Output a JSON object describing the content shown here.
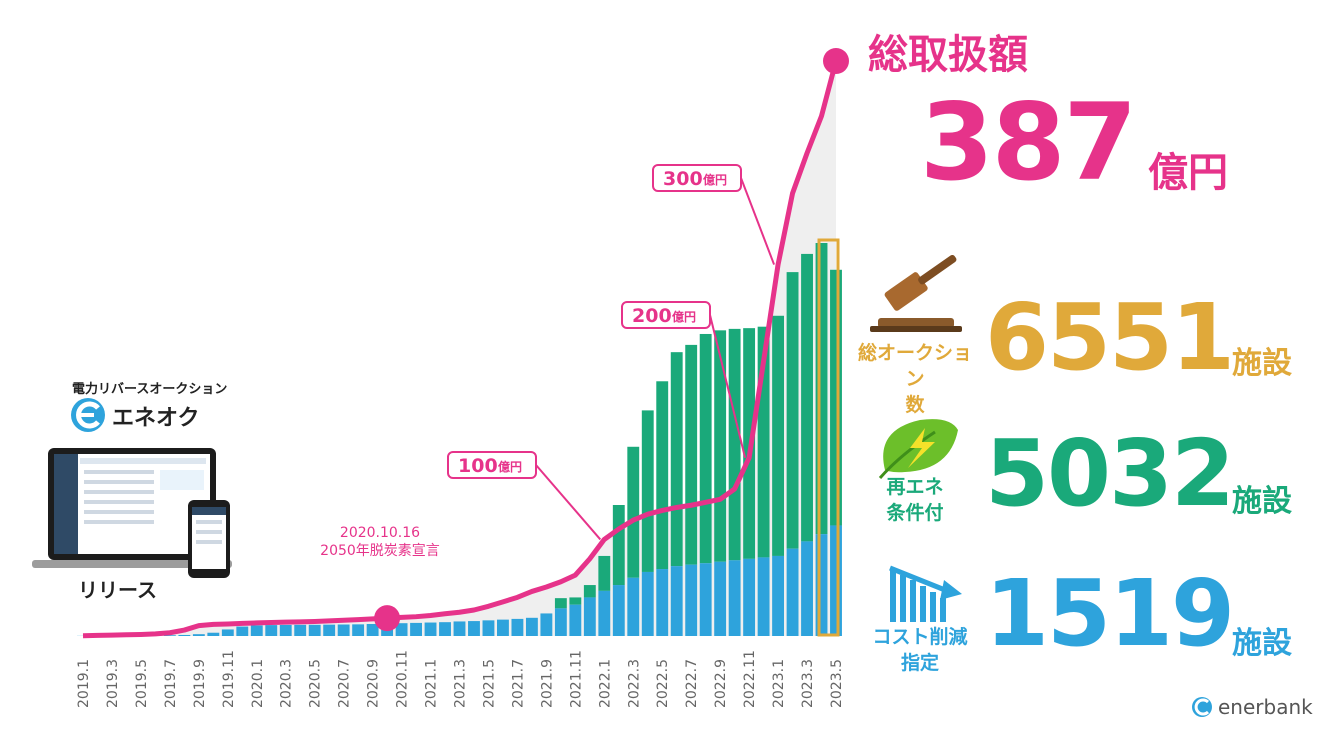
{
  "chart_data": {
    "type": "bar+line",
    "x_ticks": [
      "2019.1",
      "2019.3",
      "2019.5",
      "2019.7",
      "2019.9",
      "2019.11",
      "2020.1",
      "2020.3",
      "2020.5",
      "2020.7",
      "2020.9",
      "2020.11",
      "2021.1",
      "2021.3",
      "2021.5",
      "2021.7",
      "2021.9",
      "2021.11",
      "2022.1",
      "2022.3",
      "2022.5",
      "2022.7",
      "2022.9",
      "2022.11",
      "2023.1",
      "2023.3",
      "2023.5"
    ],
    "months_count": 53,
    "bars_green": [
      2,
      3,
      4,
      5,
      6,
      8,
      10,
      14,
      25,
      45,
      90,
      130,
      145,
      150,
      152,
      153,
      154,
      156,
      158,
      160,
      165,
      170,
      176,
      180,
      185,
      190,
      200,
      205,
      215,
      225,
      235,
      250,
      310,
      520,
      530,
      700,
      1100,
      1800,
      2600,
      3100,
      3500,
      3900,
      4000,
      4150,
      4200,
      4220,
      4230,
      4250,
      4400,
      5000,
      5250,
      5400,
      5032
    ],
    "bars_blue": [
      2,
      3,
      4,
      5,
      6,
      8,
      10,
      14,
      25,
      45,
      90,
      130,
      145,
      150,
      152,
      153,
      154,
      156,
      158,
      160,
      165,
      170,
      176,
      180,
      185,
      190,
      200,
      205,
      215,
      225,
      235,
      250,
      310,
      380,
      430,
      530,
      620,
      700,
      800,
      880,
      920,
      960,
      980,
      1000,
      1020,
      1040,
      1060,
      1080,
      1100,
      1200,
      1300,
      1400,
      1519
    ],
    "line_total": [
      2,
      4,
      6,
      8,
      10,
      14,
      22,
      40,
      70,
      78,
      81,
      85,
      88,
      91,
      93,
      95,
      98,
      102,
      106,
      110,
      115,
      120,
      125,
      130,
      138,
      150,
      160,
      175,
      200,
      230,
      260,
      300,
      330,
      365,
      410,
      520,
      650,
      720,
      780,
      820,
      845,
      865,
      880,
      900,
      920,
      990,
      1200,
      1850,
      2500,
      2980,
      3250,
      3500,
      3870
    ],
    "callouts": [
      {
        "value": "100",
        "unit": "億円"
      },
      {
        "value": "200",
        "unit": "億円"
      },
      {
        "value": "300",
        "unit": "億円"
      }
    ],
    "annotation_date": "2020.10.16",
    "annotation_text": "2050年脱炭素宣言"
  },
  "total": {
    "title": "総取扱額",
    "value": "387",
    "unit": "億円"
  },
  "stats": [
    {
      "label_lines": [
        "総オークション",
        "数"
      ],
      "value": "6551",
      "unit": "施設",
      "color": "#e0a93a",
      "icon": "gavel-icon"
    },
    {
      "label_lines": [
        "再エネ",
        "条件付"
      ],
      "value": "5032",
      "unit": "施設",
      "color": "#1aa97a",
      "icon": "leaf-lightning-icon"
    },
    {
      "label_lines": [
        "コスト削減",
        "指定"
      ],
      "value": "1519",
      "unit": "施設",
      "color": "#2ea3dc",
      "icon": "cost-down-chart-icon"
    }
  ],
  "release": {
    "subtitle": "電力リバースオークション",
    "brand": "エネオク",
    "label": "リリース"
  },
  "footer": {
    "logo": "enerbank"
  },
  "colors": {
    "pink": "#e6338a",
    "green": "#1aa97a",
    "blue": "#2ea3dc",
    "gold": "#e0a93a",
    "area": "#efefef"
  }
}
